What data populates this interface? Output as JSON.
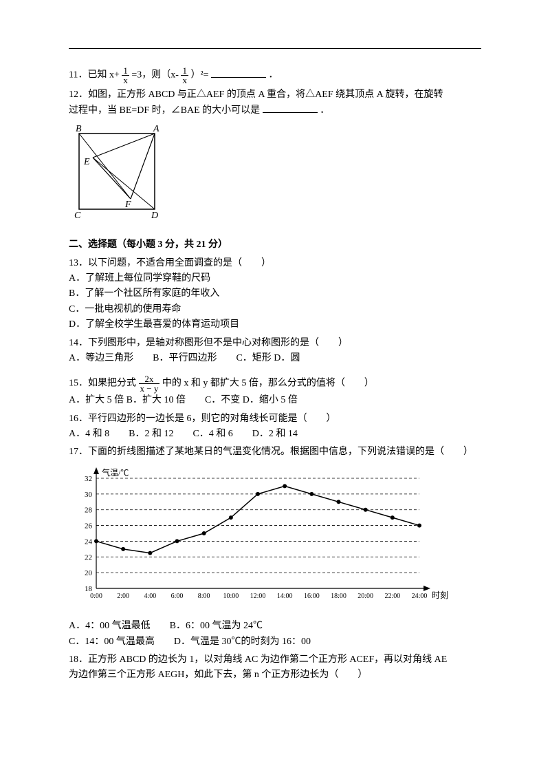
{
  "q11": {
    "prefix": "11．已知 x+",
    "mid": "=3，则（x-",
    "suffix": "）²=",
    "end": "．"
  },
  "frac1": {
    "num": "1",
    "den": "x"
  },
  "frac2": {
    "num": "1",
    "den": "x"
  },
  "q12": {
    "line1": "12．如图，正方形 ABCD 与正△AEF 的顶点 A 重合，将△AEF 绕其顶点 A 旋转，在旋转",
    "line2_pre": "过程中，当 BE=DF 时，∠BAE 的大小可以是",
    "line2_post": "．"
  },
  "geomLabels": {
    "A": "A",
    "B": "B",
    "C": "C",
    "D": "D",
    "E": "E",
    "F": "F"
  },
  "section2": "二、选择题（每小题 3 分，共 21 分）",
  "q13": {
    "stem": "13．以下问题，不适合用全面调查的是（　　）",
    "A": "A．了解班上每位同学穿鞋的尺码",
    "B": "B．了解一个社区所有家庭的年收入",
    "C": "C．一批电视机的使用寿命",
    "D": "D．了解全校学生最喜爱的体育运动项目"
  },
  "q14": {
    "stem": "14．下列图形中，是轴对称图形但不是中心对称图形的是（　　）",
    "opts": "A．等边三角形　　B．平行四边形　　C．矩形  D．圆"
  },
  "q15": {
    "pre": "15．如果把分式",
    "post": "中的 x 和 y 都扩大 5 倍，那么分式的值将（　　）",
    "opts": "A．扩大 5 倍  B．扩大 10 倍　　C．不变  D．缩小 5 倍"
  },
  "frac15": {
    "num": "2x",
    "den": "x − y"
  },
  "q16": {
    "stem": "16．平行四边形的一边长是 6，则它的对角线长可能是（　　）",
    "opts": "A．4 和 8　　B．2 和 12　　C．4 和 6　　D．2 和 14"
  },
  "q17": {
    "stem": "17．下面的折线图描述了某地某日的气温变化情况。根据图中信息，下列说法错误的是（　　）",
    "opts": "A．4：00 气温最低　　B．6：00 气温为 24℃",
    "opts2": "C．14：00 气温最高　　D．气温是 30℃的时刻为 16：00"
  },
  "chart": {
    "ylabel": "气温/℃",
    "xlabel": "时刻",
    "ymin": 18,
    "ymax": 32,
    "ystep": 2,
    "yticks": [
      18,
      20,
      22,
      24,
      26,
      28,
      30,
      32
    ],
    "xticks": [
      "0:00",
      "2:00",
      "4:00",
      "6:00",
      "8:00",
      "10:00",
      "12:00",
      "14:00",
      "16:00",
      "18:00",
      "20:00",
      "22:00",
      "24:00"
    ],
    "points": [
      {
        "x": 0,
        "y": 24
      },
      {
        "x": 2,
        "y": 23
      },
      {
        "x": 4,
        "y": 22.5
      },
      {
        "x": 6,
        "y": 24
      },
      {
        "x": 8,
        "y": 25
      },
      {
        "x": 10,
        "y": 27
      },
      {
        "x": 12,
        "y": 30
      },
      {
        "x": 14,
        "y": 31
      },
      {
        "x": 16,
        "y": 30
      },
      {
        "x": 18,
        "y": 29
      },
      {
        "x": 20,
        "y": 28
      },
      {
        "x": 22,
        "y": 27
      },
      {
        "x": 24,
        "y": 26
      }
    ],
    "grid_color": "#000000",
    "line_color": "#000000",
    "marker_color": "#000000",
    "background": "#ffffff",
    "font_size": 11
  },
  "q18": {
    "line1": "18．正方形 ABCD 的边长为 1，以对角线 AC 为边作第二个正方形 ACEF，再以对角线 AE",
    "line2": "为边作第三个正方形 AEGH，如此下去，第 n 个正方形边长为（　　）"
  }
}
